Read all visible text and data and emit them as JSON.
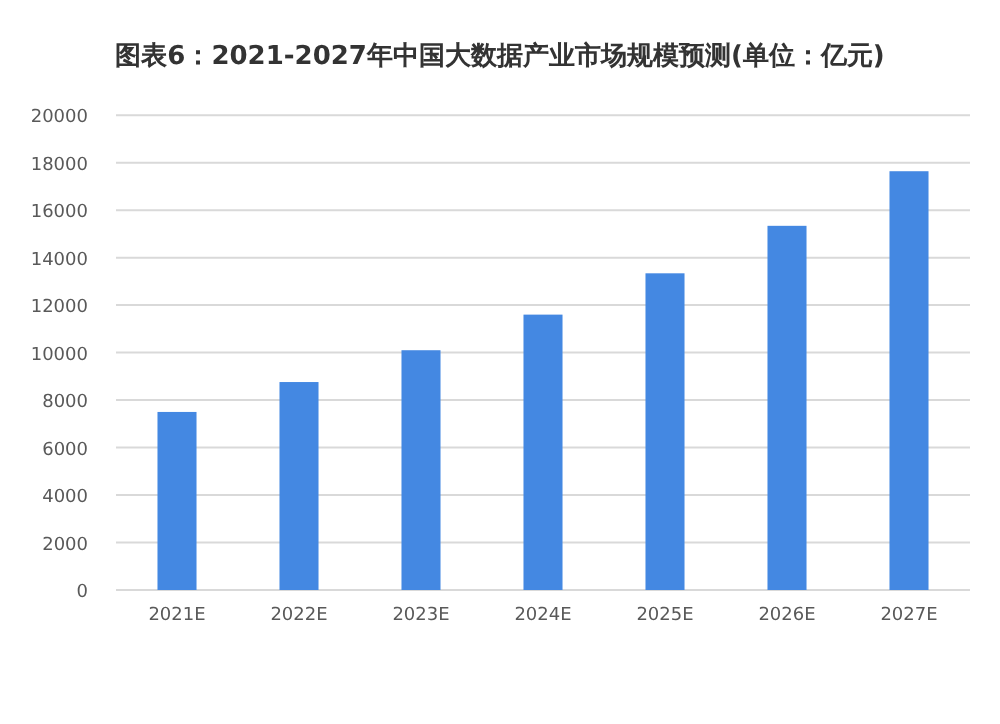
{
  "chart_data": {
    "type": "bar",
    "title": "图表6：2021-2027年中国大数据产业市场规模预测(单位：亿元)",
    "categories": [
      "2021E",
      "2022E",
      "2023E",
      "2024E",
      "2025E",
      "2026E",
      "2027E"
    ],
    "values": [
      7500,
      8760,
      10100,
      11600,
      13340,
      15340,
      17640
    ],
    "color": "#4488e2",
    "ylim": [
      0,
      20000
    ],
    "yticks": [
      0,
      2000,
      4000,
      6000,
      8000,
      10000,
      12000,
      14000,
      16000,
      18000,
      20000
    ],
    "grid": "y"
  }
}
